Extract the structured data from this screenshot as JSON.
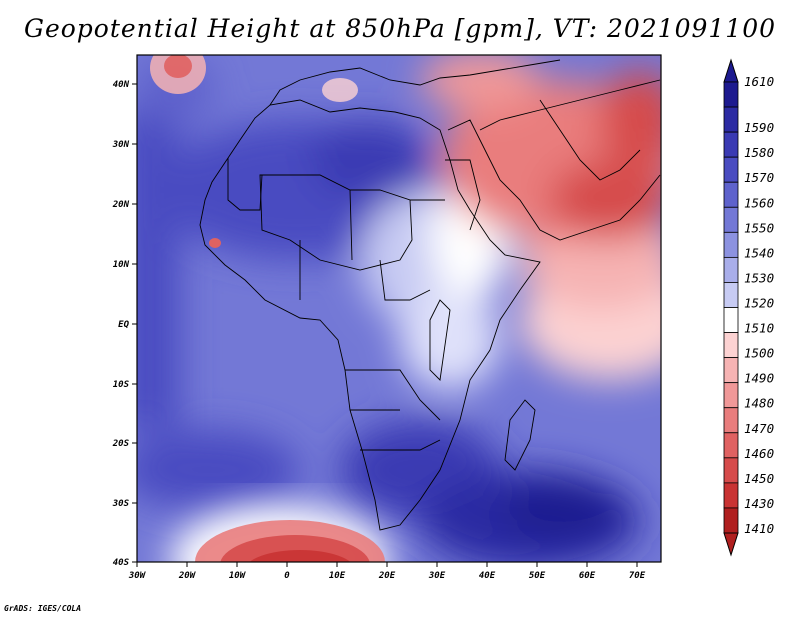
{
  "title": "Geopotential Height at 850hPa [gpm], VT: 2021091100",
  "credit": "GrADS: IGES/COLA",
  "map": {
    "lon_range": [
      -30,
      76
    ],
    "lat_range": [
      -40,
      46
    ],
    "lon_ticks": [
      "30W",
      "20W",
      "10W",
      "0",
      "10E",
      "20E",
      "30E",
      "40E",
      "50E",
      "60E",
      "70E"
    ],
    "lat_ticks": [
      "40N",
      "30N",
      "20N",
      "10N",
      "EQ",
      "10S",
      "20S",
      "30S",
      "40S"
    ],
    "field": "Geopotential Height",
    "level": "850hPa",
    "units": "gpm",
    "valid_time": "2021091100"
  },
  "colorbar": {
    "levels": [
      "1610",
      "1590",
      "1580",
      "1570",
      "1560",
      "1550",
      "1540",
      "1530",
      "1520",
      "1510",
      "1500",
      "1490",
      "1480",
      "1470",
      "1460",
      "1450",
      "1430",
      "1410"
    ],
    "colors": [
      "#1d1a8f",
      "#2c2ba3",
      "#3a3ab3",
      "#4a4cc1",
      "#5e62cc",
      "#7378d6",
      "#8c92e0",
      "#a9aeea",
      "#c7cbf3",
      "#ffffff",
      "#fcd2d2",
      "#f6b3b3",
      "#f09898",
      "#e97d7d",
      "#e06262",
      "#d64b4b",
      "#c93333",
      "#b01f1f"
    ]
  }
}
